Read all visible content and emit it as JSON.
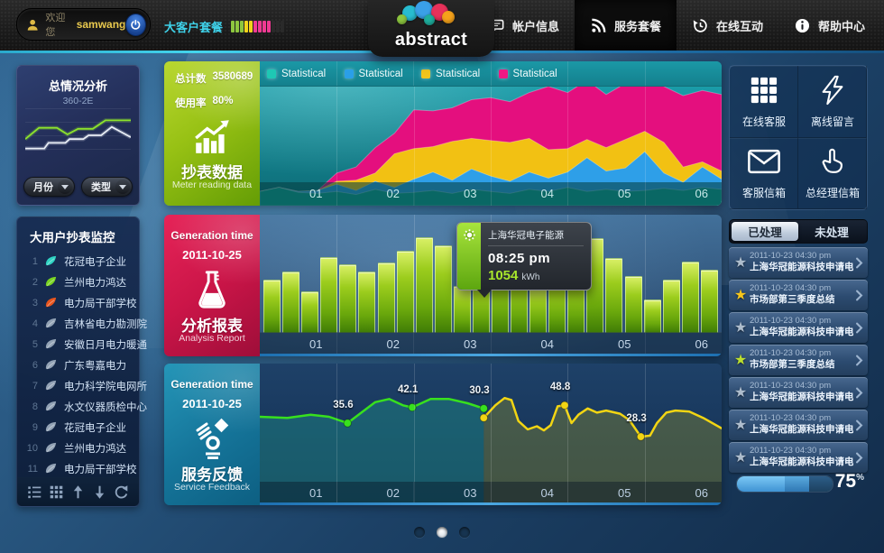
{
  "topbar": {
    "welcome": "欢迎您",
    "username": "samwang",
    "package_label": "大客户套餐",
    "meter_colors": [
      "#8dc63f",
      "#8dc63f",
      "#8dc63f",
      "#f2d41a",
      "#f2d41a",
      "#ee3a93",
      "#ee3a93",
      "#ee3a93",
      "#ee3a93",
      "#2a2a2a",
      "#2a2a2a",
      "#2a2a2a"
    ],
    "logo_text": "abstract",
    "nav": [
      {
        "label": "帐户信息",
        "icon": "message-icon",
        "active": false
      },
      {
        "label": "服务套餐",
        "icon": "rss-icon",
        "active": true
      },
      {
        "label": "在线互动",
        "icon": "history-icon",
        "active": false
      },
      {
        "label": "帮助中心",
        "icon": "info-icon",
        "active": false
      }
    ]
  },
  "left_sidebar": {
    "analysis_panel": {
      "title": "总情况分析",
      "subtitle": "360-2E",
      "month_dropdown": "月份",
      "type_dropdown": "类型"
    },
    "monitor_panel": {
      "title": "大用户抄表监控",
      "items": [
        {
          "num": "1",
          "label": "花冠电子企业",
          "icon_color": "#2fd3c3"
        },
        {
          "num": "2",
          "label": "兰州电力鸿达",
          "icon_color": "#79d321"
        },
        {
          "num": "3",
          "label": "电力局干部学校",
          "icon_color": "#e8541d"
        },
        {
          "num": "4",
          "label": "吉林省电力勘测院",
          "icon_color": "#92a2b5"
        },
        {
          "num": "5",
          "label": "安徽日月电力暖通",
          "icon_color": "#92a2b5"
        },
        {
          "num": "6",
          "label": "广东粤嘉电力",
          "icon_color": "#92a2b5"
        },
        {
          "num": "7",
          "label": "电力科学院电网所",
          "icon_color": "#92a2b5"
        },
        {
          "num": "8",
          "label": "水文仪器质检中心",
          "icon_color": "#92a2b5"
        },
        {
          "num": "9",
          "label": "花冠电子企业",
          "icon_color": "#92a2b5"
        },
        {
          "num": "10",
          "label": "兰州电力鸿达",
          "icon_color": "#92a2b5"
        },
        {
          "num": "11",
          "label": "电力局干部学校",
          "icon_color": "#92a2b5"
        }
      ],
      "toolbar_icons": [
        "list-view-icon",
        "grid-view-icon",
        "arrow-up-icon",
        "arrow-down-icon",
        "refresh-icon"
      ]
    }
  },
  "meter_card": {
    "total_label": "总计数",
    "total_value": "3580689",
    "usage_label": "使用率",
    "usage_value": "80%",
    "title_zh": "抄表数据",
    "title_en": "Meter reading data"
  },
  "analysis_card": {
    "time_label": "Generation time",
    "date": "2011-10-25",
    "title_zh": "分析报表",
    "title_en": "Analysis Report"
  },
  "feedback_card": {
    "time_label": "Generation time",
    "date": "2011-10-25",
    "title_zh": "服务反馈",
    "title_en": "Service Feedback"
  },
  "right_sidebar": {
    "quick_actions": [
      {
        "label": "在线客服",
        "icon": "keypad-icon"
      },
      {
        "label": "离线留言",
        "icon": "lightning-icon"
      },
      {
        "label": "客服信箱",
        "icon": "envelope-icon"
      },
      {
        "label": "总经理信箱",
        "icon": "hand-icon"
      }
    ],
    "tabs": [
      {
        "label": "已处理",
        "active": true
      },
      {
        "label": "未处理",
        "active": false
      }
    ],
    "messages": [
      {
        "date": "2011-10-23",
        "time": "04:30 pm",
        "title": "上海华冠能源科技申请电量",
        "star_color": "#aebdcd"
      },
      {
        "date": "2011-10-23",
        "time": "04:30 pm",
        "title": "市场部第三季度总结",
        "star_color": "#f7c61b"
      },
      {
        "date": "2011-10-23",
        "time": "04:30 pm",
        "title": "上海华冠能源科技申请电量",
        "star_color": "#aebdcd"
      },
      {
        "date": "2011-10-23",
        "time": "04:30 pm",
        "title": "市场部第三季度总结",
        "star_color": "#bcdf2e"
      },
      {
        "date": "2011-10-23",
        "time": "04:30 pm",
        "title": "上海华冠能源科技申请电量",
        "star_color": "#aebdcd"
      },
      {
        "date": "2011-10-23",
        "time": "04:30 pm",
        "title": "上海华冠能源科技申请电量",
        "star_color": "#aebdcd"
      },
      {
        "date": "2011-10-23",
        "time": "04:30 pm",
        "title": "上海华冠能源科技申请电量",
        "star_color": "#aebdcd"
      }
    ],
    "progress": {
      "value": "75",
      "unit": "%"
    }
  },
  "pagination": {
    "dots": 3,
    "active": 1
  },
  "chart_data": [
    {
      "id": "overview-mini-trend",
      "type": "line",
      "title": "总情况分析 360-2E",
      "legend_position": "none",
      "series": [
        {
          "name": "series-green",
          "color": "#8de32c",
          "points_pct": [
            [
              0,
              60
            ],
            [
              13,
              36
            ],
            [
              30,
              36
            ],
            [
              40,
              50
            ],
            [
              50,
              38
            ],
            [
              64,
              38
            ],
            [
              76,
              20
            ],
            [
              100,
              20
            ]
          ]
        },
        {
          "name": "series-white",
          "color": "#e9eef6",
          "points_pct": [
            [
              0,
              80
            ],
            [
              18,
              80
            ],
            [
              22,
              68
            ],
            [
              38,
              68
            ],
            [
              42,
              60
            ],
            [
              55,
              60
            ],
            [
              60,
              52
            ],
            [
              72,
              52
            ],
            [
              82,
              34
            ],
            [
              100,
              56
            ]
          ]
        }
      ]
    },
    {
      "id": "meter-reading-stacked-area",
      "type": "area",
      "stacked": true,
      "categories": [
        "01",
        "02",
        "03",
        "04",
        "05",
        "06"
      ],
      "legend": [
        {
          "label": "Statistical",
          "color": "#1ec8b4"
        },
        {
          "label": "Statistical",
          "color": "#2a9fe8"
        },
        {
          "label": "Statistical",
          "color": "#f2c51d"
        },
        {
          "label": "Statistical",
          "color": "#ee1884"
        }
      ],
      "series": [
        {
          "name": "Statistical-teal",
          "color": "#0fa093",
          "values": [
            14,
            18,
            13,
            12,
            14,
            11,
            16,
            12,
            13,
            15,
            12,
            16,
            14,
            12,
            16,
            14,
            18,
            14,
            16,
            14,
            15,
            17,
            15,
            18,
            16
          ]
        },
        {
          "name": "Statistical-blue",
          "color": "#2e9fe8",
          "values": [
            0,
            0,
            1,
            3,
            7,
            4,
            8,
            6,
            13,
            18,
            13,
            20,
            15,
            12,
            17,
            13,
            15,
            33,
            18,
            23,
            38,
            15,
            8,
            20,
            10
          ]
        },
        {
          "name": "Statistical-yellow",
          "color": "#f2c113",
          "values": [
            0,
            0,
            0,
            0,
            3,
            10,
            8,
            33,
            30,
            25,
            38,
            30,
            35,
            38,
            33,
            28,
            23,
            18,
            23,
            28,
            20,
            30,
            15,
            5,
            8
          ]
        },
        {
          "name": "Statistical-pink",
          "color": "#e40f7e",
          "values": [
            0,
            0,
            0,
            0,
            8,
            13,
            25,
            20,
            38,
            35,
            33,
            38,
            42,
            40,
            45,
            62,
            55,
            58,
            52,
            55,
            50,
            55,
            70,
            70,
            75
          ]
        }
      ]
    },
    {
      "id": "analysis-report-bars",
      "type": "bar",
      "categories": [
        "01",
        "02",
        "03",
        "04",
        "05",
        "06"
      ],
      "bar_color": "#9ccd1d",
      "values": [
        55,
        64,
        43,
        79,
        71,
        64,
        73,
        86,
        100,
        91,
        49,
        59,
        78,
        68,
        49,
        62,
        68,
        99,
        78,
        59,
        34,
        55,
        74,
        66
      ],
      "highlight": {
        "title": "上海华冠电子能源",
        "time": "08:25 pm",
        "value": "1054",
        "unit": "kWh"
      }
    },
    {
      "id": "service-feedback-lines",
      "type": "line",
      "categories": [
        "01",
        "02",
        "03",
        "04",
        "05",
        "06"
      ],
      "series": [
        {
          "name": "first-half-green",
          "color": "#38e01e",
          "fill": "rgba(32,148,138,0.42)",
          "points_pct": [
            [
              0,
              44
            ],
            [
              6,
              45
            ],
            [
              11,
              42
            ],
            [
              15,
              44
            ],
            [
              17,
              47
            ],
            [
              19,
              50
            ],
            [
              22,
              40
            ],
            [
              25,
              30
            ],
            [
              28,
              27
            ],
            [
              31,
              33
            ],
            [
              33,
              35
            ],
            [
              37,
              27
            ],
            [
              41,
              27
            ],
            [
              45,
              31
            ],
            [
              48.5,
              36
            ]
          ]
        },
        {
          "name": "second-half-yellow",
          "color": "#f2d513",
          "fill": "rgba(150,150,42,0.36)",
          "points_pct": [
            [
              48.5,
              45
            ],
            [
              51,
              33
            ],
            [
              53,
              26
            ],
            [
              54.5,
              28
            ],
            [
              56,
              48
            ],
            [
              58,
              56
            ],
            [
              60,
              53
            ],
            [
              61.5,
              57
            ],
            [
              63,
              52
            ],
            [
              64.5,
              34
            ],
            [
              66,
              33
            ],
            [
              67.5,
              50
            ],
            [
              69,
              42
            ],
            [
              71,
              36
            ],
            [
              73,
              40
            ],
            [
              75,
              38
            ],
            [
              78,
              41
            ],
            [
              80,
              47
            ],
            [
              82.5,
              63
            ],
            [
              84.5,
              62
            ],
            [
              86,
              50
            ],
            [
              88,
              40
            ],
            [
              90,
              38
            ],
            [
              93,
              39
            ],
            [
              96,
              45
            ],
            [
              100,
              55
            ]
          ]
        }
      ],
      "point_labels": [
        {
          "text": "35.6",
          "x": 19,
          "y": 50,
          "series": 0
        },
        {
          "text": "42.1",
          "x": 33,
          "y": 35,
          "series": 0
        },
        {
          "text": "30.3",
          "x": 48.5,
          "y": 36,
          "series": 0
        },
        {
          "text": "48.8",
          "x": 66,
          "y": 33,
          "series": 1
        },
        {
          "text": "28.3",
          "x": 82.5,
          "y": 63,
          "series": 1
        }
      ]
    }
  ]
}
